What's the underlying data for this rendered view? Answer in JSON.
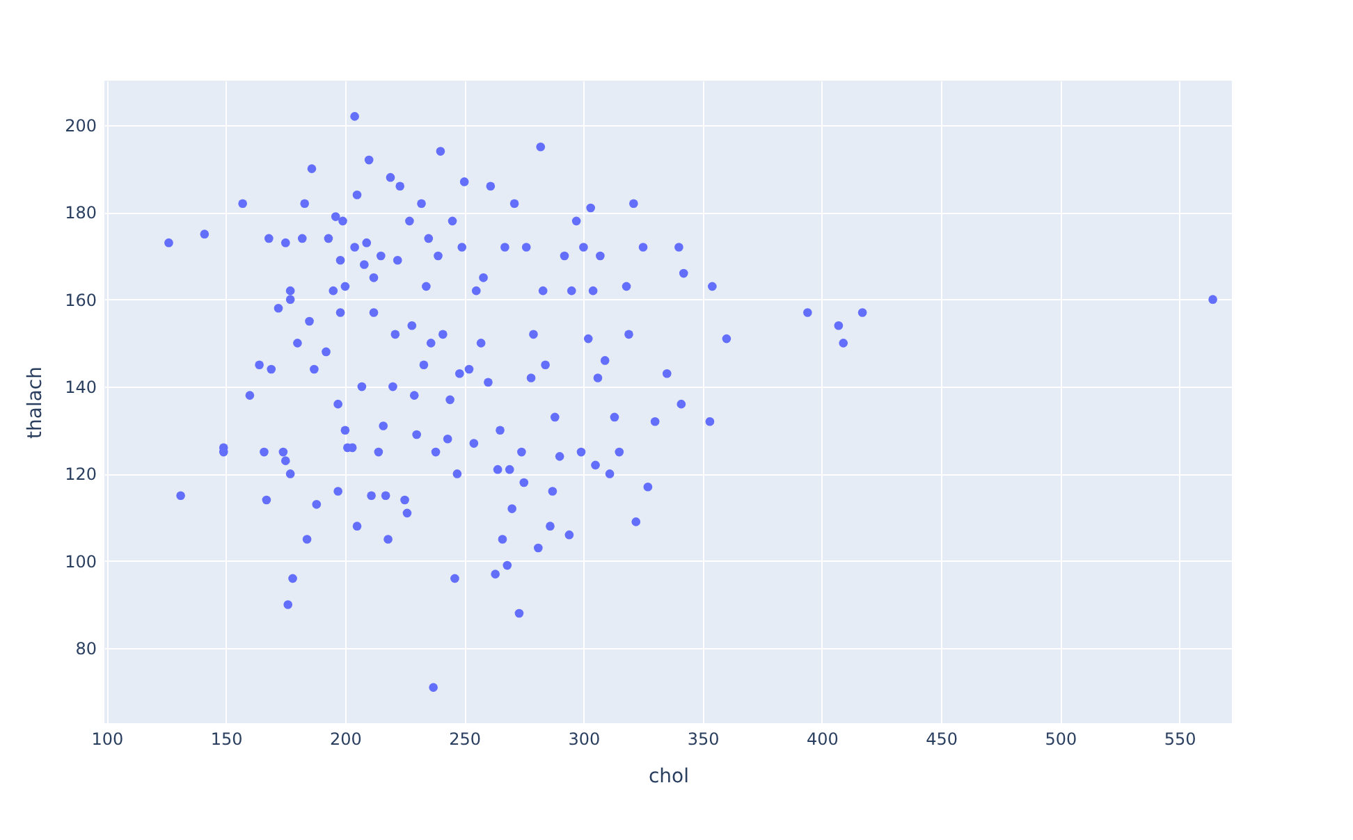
{
  "chart_data": {
    "type": "scatter",
    "xlabel": "chol",
    "ylabel": "thalach",
    "color": "#636efa",
    "marker": "circle",
    "grid": true,
    "xlim": [
      99,
      572
    ],
    "ylim": [
      62.8,
      210.2
    ],
    "xticks": [
      100,
      150,
      200,
      250,
      300,
      350,
      400,
      450,
      500,
      550
    ],
    "yticks": [
      80,
      100,
      120,
      140,
      160,
      180,
      200
    ],
    "x": [
      126,
      131,
      141,
      149,
      149,
      157,
      160,
      164,
      166,
      167,
      168,
      169,
      172,
      174,
      175,
      175,
      176,
      177,
      177,
      177,
      178,
      180,
      182,
      183,
      184,
      185,
      186,
      187,
      188,
      192,
      193,
      195,
      196,
      197,
      197,
      198,
      198,
      199,
      200,
      200,
      201,
      203,
      204,
      204,
      205,
      205,
      207,
      208,
      209,
      210,
      211,
      212,
      212,
      214,
      215,
      216,
      217,
      218,
      219,
      220,
      221,
      222,
      223,
      225,
      226,
      227,
      228,
      229,
      230,
      232,
      233,
      234,
      235,
      236,
      237,
      238,
      239,
      240,
      241,
      243,
      244,
      245,
      246,
      247,
      248,
      249,
      250,
      252,
      254,
      255,
      257,
      258,
      260,
      261,
      263,
      264,
      265,
      266,
      267,
      268,
      269,
      270,
      271,
      273,
      274,
      275,
      276,
      278,
      279,
      281,
      282,
      283,
      284,
      286,
      287,
      288,
      290,
      292,
      294,
      295,
      297,
      299,
      300,
      302,
      303,
      304,
      305,
      306,
      307,
      309,
      311,
      313,
      315,
      318,
      319,
      321,
      322,
      325,
      327,
      330,
      335,
      340,
      341,
      342,
      353,
      354,
      360,
      394,
      407,
      409,
      417,
      564
    ],
    "values": [
      173,
      115,
      175,
      126,
      125,
      182,
      138,
      145,
      125,
      114,
      174,
      144,
      158,
      125,
      123,
      173,
      90,
      120,
      160,
      162,
      96,
      150,
      174,
      182,
      105,
      155,
      190,
      144,
      113,
      148,
      174,
      162,
      179,
      116,
      136,
      169,
      157,
      178,
      163,
      130,
      126,
      126,
      202,
      172,
      184,
      108,
      140,
      168,
      173,
      192,
      115,
      157,
      165,
      125,
      170,
      131,
      115,
      105,
      188,
      140,
      152,
      169,
      186,
      114,
      111,
      178,
      154,
      138,
      129,
      182,
      145,
      163,
      174,
      150,
      71,
      125,
      170,
      194,
      152,
      128,
      137,
      178,
      96,
      120,
      143,
      172,
      187,
      144,
      127,
      162,
      150,
      165,
      141,
      186,
      97,
      121,
      130,
      105,
      172,
      99,
      121,
      112,
      182,
      88,
      125,
      118,
      172,
      142,
      152,
      103,
      195,
      162,
      145,
      108,
      116,
      133,
      124,
      170,
      106,
      162,
      178,
      125,
      172,
      151,
      181,
      162,
      122,
      142,
      170,
      146,
      120,
      133,
      125,
      163,
      152,
      182,
      109,
      172,
      117,
      132,
      143,
      172,
      136,
      166,
      132,
      163,
      151,
      157,
      154,
      150,
      157,
      160
    ]
  }
}
